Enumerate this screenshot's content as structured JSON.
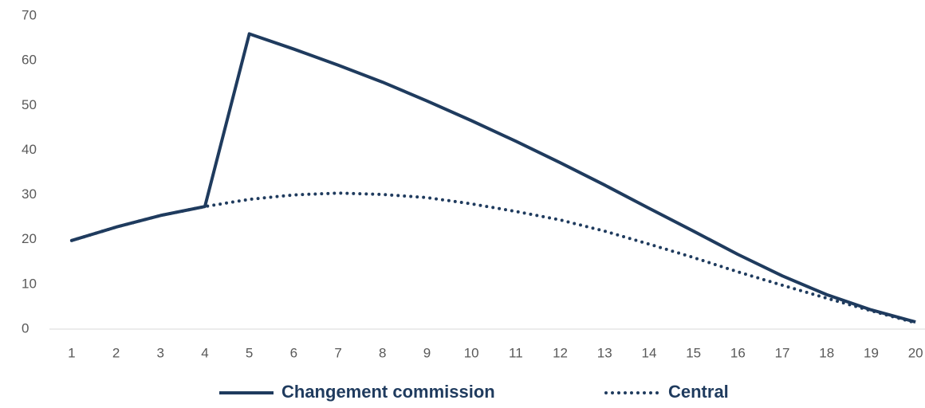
{
  "chart_data": {
    "type": "line",
    "categories": [
      1,
      2,
      3,
      4,
      5,
      6,
      7,
      8,
      9,
      10,
      11,
      12,
      13,
      14,
      15,
      16,
      17,
      18,
      19,
      20
    ],
    "series": [
      {
        "name": "Changement commission",
        "color": "#1f3b5e",
        "style": "solid",
        "values": [
          19.8,
          22.8,
          25.4,
          27.4,
          66,
          62.6,
          59,
          55.2,
          51,
          46.6,
          42,
          37.2,
          32.2,
          27,
          21.9,
          16.7,
          11.9,
          7.7,
          4.3,
          1.6
        ]
      },
      {
        "name": "Central",
        "color": "#1f3b5e",
        "style": "dotted",
        "values": [
          19.8,
          22.8,
          25.4,
          27.4,
          29,
          30,
          30.4,
          30.1,
          29.4,
          28,
          26.3,
          24.4,
          21.9,
          19,
          16,
          12.8,
          9.8,
          6.9,
          4.1,
          1.4
        ]
      }
    ],
    "ylim": [
      0,
      70
    ],
    "yticks": [
      0,
      10,
      20,
      30,
      40,
      50,
      60,
      70
    ],
    "grid": false,
    "legend": "bottom"
  }
}
